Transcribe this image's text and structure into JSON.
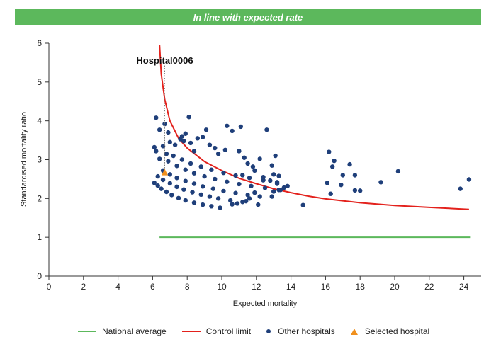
{
  "banner": {
    "text": "In line with expected rate"
  },
  "colors": {
    "banner": "#5cb85c",
    "national": "#5cb85c",
    "control": "#e3211c",
    "other": "#1f3f7a",
    "selected": "#f0901e"
  },
  "legend": {
    "national": "National average",
    "control": "Control limit",
    "other": "Other hospitals",
    "selected": "Selected hospital"
  },
  "chart_data": {
    "type": "scatter",
    "title": "In line with expected rate",
    "xlabel": "Expected mortality",
    "ylabel": "Standardised mortality ratio",
    "xlim": [
      0,
      25
    ],
    "ylim": [
      0,
      6
    ],
    "xticks": [
      0,
      2,
      4,
      6,
      8,
      10,
      12,
      14,
      16,
      18,
      20,
      22,
      24
    ],
    "yticks": [
      0,
      1,
      2,
      3,
      4,
      5,
      6
    ],
    "grid": false,
    "legend_position": "bottom",
    "national_average": {
      "name": "National average",
      "y": 1,
      "x_range": [
        6.4,
        24.4
      ]
    },
    "control_limit": {
      "name": "Control limit",
      "points": [
        [
          6.4,
          5.95
        ],
        [
          6.5,
          5.2
        ],
        [
          6.7,
          4.55
        ],
        [
          7.0,
          4.0
        ],
        [
          7.5,
          3.55
        ],
        [
          8.0,
          3.3
        ],
        [
          9.0,
          2.95
        ],
        [
          10.0,
          2.72
        ],
        [
          11.0,
          2.52
        ],
        [
          12.0,
          2.38
        ],
        [
          13.0,
          2.25
        ],
        [
          14.0,
          2.15
        ],
        [
          15.0,
          2.06
        ],
        [
          16.0,
          1.99
        ],
        [
          18.0,
          1.89
        ],
        [
          20.0,
          1.82
        ],
        [
          22.0,
          1.77
        ],
        [
          24.3,
          1.72
        ]
      ]
    },
    "selected_hospital": {
      "name": "Hospital0006",
      "x": 6.7,
      "y": 2.67
    },
    "series": [
      {
        "name": "Other hospitals",
        "points": [
          [
            6.1,
            2.4
          ],
          [
            6.3,
            2.33
          ],
          [
            6.5,
            2.25
          ],
          [
            6.8,
            2.17
          ],
          [
            7.1,
            2.09
          ],
          [
            7.5,
            2.01
          ],
          [
            7.9,
            1.95
          ],
          [
            8.4,
            1.89
          ],
          [
            8.9,
            1.84
          ],
          [
            9.4,
            1.8
          ],
          [
            9.9,
            1.76
          ],
          [
            6.3,
            2.57
          ],
          [
            6.6,
            2.48
          ],
          [
            7.0,
            2.39
          ],
          [
            7.4,
            2.3
          ],
          [
            7.8,
            2.23
          ],
          [
            8.3,
            2.16
          ],
          [
            8.8,
            2.1
          ],
          [
            9.3,
            2.05
          ],
          [
            9.8,
            2.0
          ],
          [
            10.5,
            1.95
          ],
          [
            11.2,
            1.91
          ],
          [
            6.6,
            2.72
          ],
          [
            7.0,
            2.62
          ],
          [
            7.4,
            2.53
          ],
          [
            7.9,
            2.45
          ],
          [
            8.4,
            2.38
          ],
          [
            8.9,
            2.31
          ],
          [
            9.5,
            2.25
          ],
          [
            10.1,
            2.19
          ],
          [
            10.8,
            2.14
          ],
          [
            11.5,
            2.09
          ],
          [
            12.2,
            2.05
          ],
          [
            6.9,
            2.96
          ],
          [
            7.4,
            2.84
          ],
          [
            7.9,
            2.74
          ],
          [
            8.4,
            2.65
          ],
          [
            9.0,
            2.57
          ],
          [
            9.6,
            2.5
          ],
          [
            10.3,
            2.43
          ],
          [
            11.0,
            2.37
          ],
          [
            11.7,
            2.32
          ],
          [
            12.5,
            2.27
          ],
          [
            13.3,
            2.22
          ],
          [
            7.2,
            3.1
          ],
          [
            7.7,
            3.0
          ],
          [
            8.2,
            2.9
          ],
          [
            8.8,
            2.82
          ],
          [
            9.4,
            2.74
          ],
          [
            10.1,
            2.66
          ],
          [
            10.8,
            2.59
          ],
          [
            11.6,
            2.53
          ],
          [
            12.4,
            2.47
          ],
          [
            13.2,
            2.42
          ],
          [
            6.1,
            3.32
          ],
          [
            6.2,
            3.22
          ],
          [
            6.4,
            3.02
          ],
          [
            6.6,
            3.35
          ],
          [
            6.8,
            3.15
          ],
          [
            7.0,
            3.45
          ],
          [
            7.3,
            3.38
          ],
          [
            7.6,
            3.53
          ],
          [
            7.8,
            3.48
          ],
          [
            7.9,
            3.67
          ],
          [
            8.2,
            3.43
          ],
          [
            8.4,
            3.22
          ],
          [
            8.6,
            3.55
          ],
          [
            8.9,
            3.58
          ],
          [
            9.1,
            3.77
          ],
          [
            9.3,
            3.38
          ],
          [
            9.6,
            3.3
          ],
          [
            9.8,
            3.15
          ],
          [
            10.2,
            3.25
          ],
          [
            10.3,
            3.87
          ],
          [
            10.6,
            3.74
          ],
          [
            11.0,
            3.22
          ],
          [
            11.1,
            3.85
          ],
          [
            11.3,
            3.05
          ],
          [
            11.5,
            2.9
          ],
          [
            11.8,
            2.82
          ],
          [
            11.9,
            2.72
          ],
          [
            12.2,
            3.02
          ],
          [
            12.4,
            2.55
          ],
          [
            12.6,
            3.77
          ],
          [
            12.8,
            2.46
          ],
          [
            13.0,
            2.62
          ],
          [
            13.1,
            3.1
          ],
          [
            13.2,
            2.38
          ],
          [
            13.3,
            2.58
          ],
          [
            12.9,
            2.85
          ],
          [
            13.4,
            2.22
          ],
          [
            6.2,
            4.08
          ],
          [
            6.4,
            3.77
          ],
          [
            6.7,
            3.92
          ],
          [
            8.1,
            4.1
          ],
          [
            6.9,
            3.7
          ],
          [
            7.7,
            3.6
          ],
          [
            14.7,
            1.83
          ],
          [
            13.6,
            2.28
          ],
          [
            13.8,
            2.32
          ],
          [
            11.2,
            2.6
          ],
          [
            11.6,
            2.0
          ],
          [
            12.1,
            1.84
          ],
          [
            10.6,
            1.85
          ],
          [
            10.9,
            1.87
          ],
          [
            11.4,
            1.93
          ],
          [
            11.9,
            2.15
          ],
          [
            12.9,
            2.05
          ],
          [
            13.0,
            2.18
          ],
          [
            16.2,
            3.2
          ],
          [
            16.5,
            2.97
          ],
          [
            16.4,
            2.82
          ],
          [
            17.0,
            2.6
          ],
          [
            17.4,
            2.88
          ],
          [
            17.7,
            2.6
          ],
          [
            16.1,
            2.4
          ],
          [
            16.3,
            2.12
          ],
          [
            16.9,
            2.35
          ],
          [
            17.7,
            2.21
          ],
          [
            18.0,
            2.2
          ],
          [
            19.2,
            2.42
          ],
          [
            20.2,
            2.7
          ],
          [
            23.8,
            2.25
          ],
          [
            24.3,
            2.49
          ]
        ]
      }
    ]
  }
}
